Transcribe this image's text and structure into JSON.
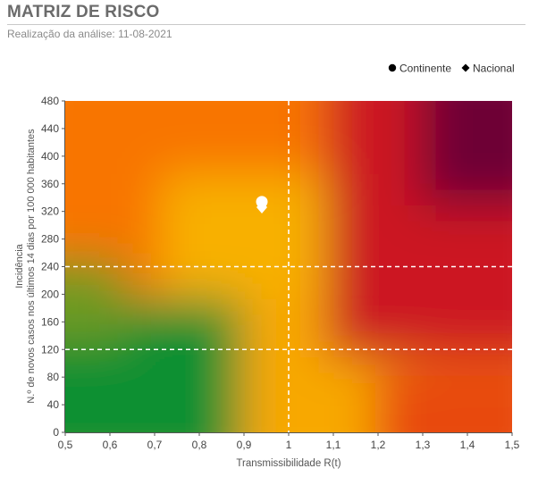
{
  "header": {
    "title": "MATRIZ DE RISCO",
    "subtitle": "Realização da análise: 11-08-2021"
  },
  "colors": {
    "green": "#119030",
    "yellow": "#f8b000",
    "orange": "#f87400",
    "red": "#cc1424",
    "dark_red": "#6e0035",
    "axis": "#555555",
    "threshold": "#ffffff"
  },
  "chart_data": {
    "type": "scatter",
    "xlabel": "Transmissibilidade R(t)",
    "ylabel_lines": [
      "Incidência",
      "N.º de novos casos nos últimos 14 dias por 100 000 habitantes"
    ],
    "xlim": [
      0.5,
      1.5
    ],
    "ylim": [
      0,
      480
    ],
    "x_ticks": [
      0.5,
      0.6,
      0.7,
      0.8,
      0.9,
      1.0,
      1.1,
      1.2,
      1.3,
      1.4,
      1.5
    ],
    "x_tick_labels": [
      "0,5",
      "0,6",
      "0,7",
      "0,8",
      "0,9",
      "1",
      "1,1",
      "1,2",
      "1,3",
      "1,4",
      "1,5"
    ],
    "y_ticks": [
      0,
      40,
      80,
      120,
      160,
      200,
      240,
      280,
      320,
      360,
      400,
      440,
      480
    ],
    "y_tick_labels": [
      "0",
      "40",
      "80",
      "120",
      "160",
      "200",
      "240",
      "280",
      "320",
      "360",
      "400",
      "440",
      "480"
    ],
    "thresholds": {
      "x": [
        1.0
      ],
      "y": [
        120,
        240
      ]
    },
    "legend_position": "top-right",
    "series": [
      {
        "name": "Continente",
        "marker": "circle",
        "color": "#ffffff",
        "points": [
          {
            "x": 0.94,
            "y": 334
          }
        ]
      },
      {
        "name": "Nacional",
        "marker": "diamond",
        "color": "#ffffff",
        "points": [
          {
            "x": 0.94,
            "y": 326
          }
        ]
      }
    ],
    "legend": [
      {
        "name": "Continente",
        "marker": "circle",
        "color": "#000000"
      },
      {
        "name": "Nacional",
        "marker": "diamond",
        "color": "#000000"
      }
    ]
  }
}
